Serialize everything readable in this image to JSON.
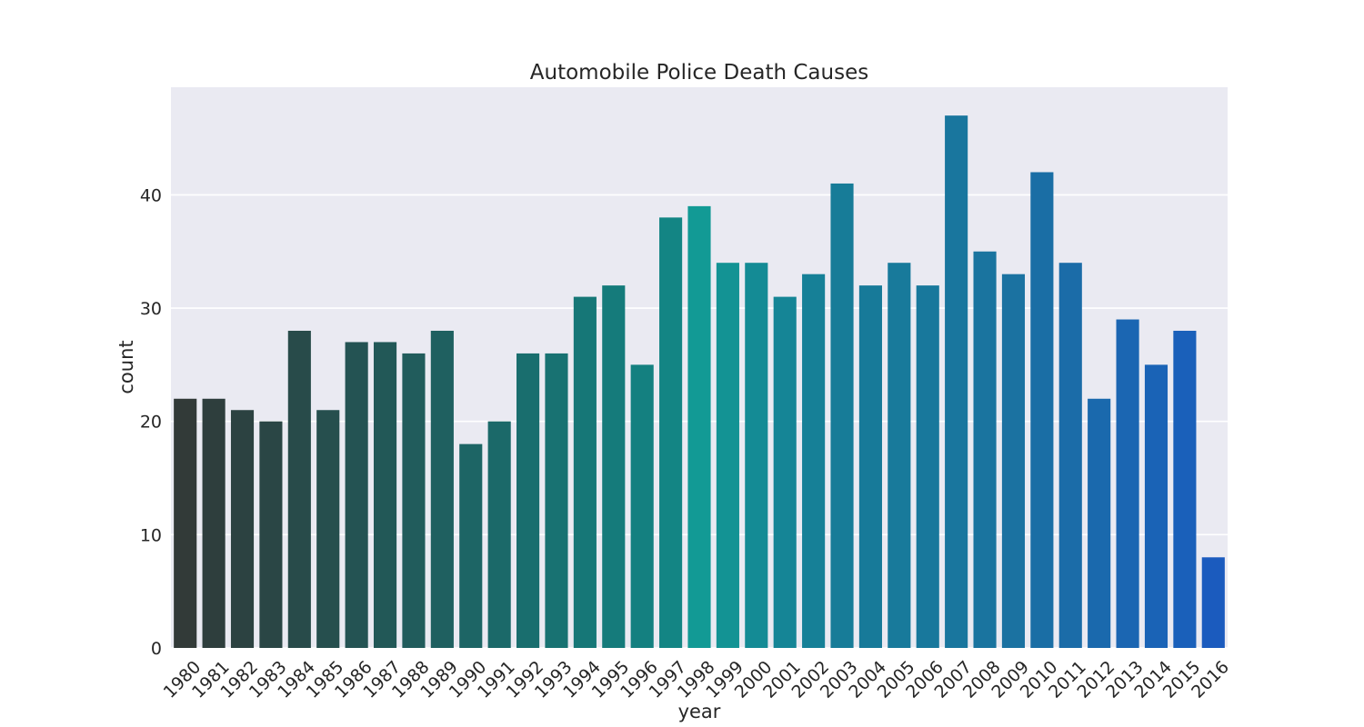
{
  "chart_data": {
    "type": "bar",
    "title": "Automobile Police Death Causes",
    "xlabel": "year",
    "ylabel": "count",
    "ylim": [
      0,
      49.5
    ],
    "yticks": [
      0,
      10,
      20,
      30,
      40
    ],
    "grid": true,
    "background": "#eaeaf2",
    "categories": [
      "1980",
      "1981",
      "1982",
      "1983",
      "1984",
      "1985",
      "1986",
      "1987",
      "1988",
      "1989",
      "1990",
      "1991",
      "1992",
      "1993",
      "1994",
      "1995",
      "1996",
      "1997",
      "1998",
      "1999",
      "2000",
      "2001",
      "2002",
      "2003",
      "2004",
      "2005",
      "2006",
      "2007",
      "2008",
      "2009",
      "2010",
      "2011",
      "2012",
      "2013",
      "2014",
      "2015",
      "2016"
    ],
    "values": [
      22,
      22,
      21,
      20,
      28,
      21,
      27,
      27,
      26,
      28,
      18,
      20,
      26,
      26,
      31,
      32,
      25,
      38,
      39,
      34,
      34,
      31,
      33,
      41,
      32,
      34,
      32,
      47,
      35,
      33,
      42,
      34,
      22,
      29,
      25,
      28,
      8
    ],
    "colors": [
      "#323a38",
      "#2e3e3d",
      "#2c4241",
      "#2a4645",
      "#284b4a",
      "#264f4e",
      "#245353",
      "#225857",
      "#215c5c",
      "#1f6060",
      "#1d6565",
      "#1b6969",
      "#196e6e",
      "#187272",
      "#167777",
      "#157b7b",
      "#148080",
      "#138584",
      "#129a95",
      "#139394",
      "#148b95",
      "#158596",
      "#168097",
      "#177c98",
      "#177a99",
      "#187a9b",
      "#18789c",
      "#19769e",
      "#1a749f",
      "#1b72a1",
      "#1a6ea5",
      "#1b6ca8",
      "#1a69ad",
      "#1b66b2",
      "#1a63b6",
      "#1a60ba",
      "#1b5bbe"
    ]
  }
}
